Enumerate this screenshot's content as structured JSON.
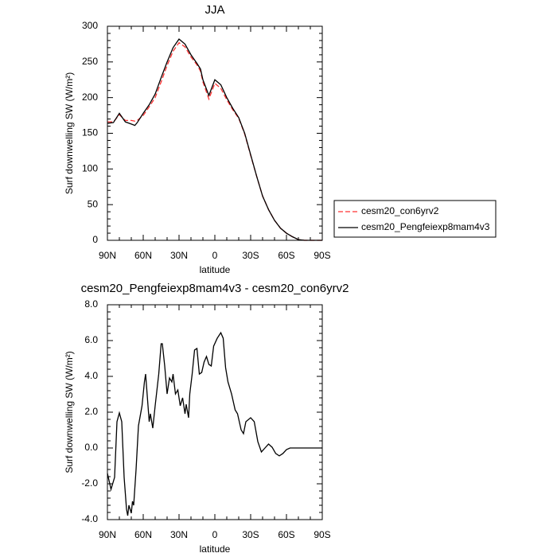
{
  "chart_data": [
    {
      "type": "line",
      "title": "JJA",
      "xlabel": "latitude",
      "ylabel": "Surf downwelling SW (W/m²)",
      "x": [
        90,
        85,
        80,
        75,
        70,
        67,
        65,
        60,
        55,
        50,
        45,
        40,
        35,
        30,
        25,
        20,
        15,
        12,
        10,
        5,
        0,
        -5,
        -10,
        -15,
        -20,
        -25,
        -30,
        -35,
        -40,
        -45,
        -50,
        -55,
        -60,
        -65,
        -70,
        -75,
        -80,
        -85,
        -90
      ],
      "series": [
        {
          "name": "cesm20_con6yrv2",
          "color": "#ff3030",
          "line_style": "dashed",
          "values": [
            166,
            166,
            176,
            168,
            168,
            167,
            168,
            175,
            187,
            200,
            222,
            245,
            265,
            277,
            271,
            257,
            246,
            237,
            222,
            198,
            220,
            213,
            197,
            183,
            171,
            149,
            119,
            90,
            62,
            43,
            28,
            17,
            10,
            5,
            1,
            0,
            0,
            0,
            0
          ]
        },
        {
          "name": "cesm20_Pengfeiexp8mam4v3",
          "color": "#000000",
          "line_style": "solid",
          "values": [
            164,
            165,
            178,
            166,
            163,
            161,
            165,
            178,
            190,
            205,
            228,
            250,
            270,
            282,
            275,
            260,
            248,
            240,
            225,
            203,
            225,
            218,
            200,
            185,
            172,
            150,
            120,
            90,
            62,
            43,
            28,
            17,
            10,
            5,
            1,
            0,
            0,
            0,
            0
          ]
        }
      ],
      "xlim": [
        90,
        -90
      ],
      "xticks": [
        {
          "value": 90,
          "label": "90N"
        },
        {
          "value": 60,
          "label": "60N"
        },
        {
          "value": 30,
          "label": "30N"
        },
        0,
        {
          "value": -30,
          "label": "30S"
        },
        {
          "value": -60,
          "label": "60S"
        },
        {
          "value": -90,
          "label": "90S"
        }
      ],
      "ylim": [
        0,
        300
      ],
      "yticks": [
        0,
        50,
        100,
        150,
        200,
        250,
        300
      ],
      "legend": "right"
    },
    {
      "type": "line",
      "title": "cesm20_Pengfeiexp8mam4v3 - cesm20_con6yrv2",
      "xlabel": "latitude",
      "ylabel": "Surf downwelling SW (W/m²)",
      "x": [
        90,
        87,
        84,
        82,
        80,
        78,
        76,
        74,
        73,
        72,
        70,
        69,
        68,
        66,
        64,
        61,
        59,
        58,
        56,
        55,
        54,
        52,
        50,
        47,
        45,
        44,
        42,
        40,
        38,
        36,
        35,
        33,
        31,
        29,
        27,
        25,
        24,
        22,
        21,
        19,
        17,
        15,
        13,
        11,
        9,
        7,
        5,
        3,
        1,
        -2,
        -5,
        -7,
        -9,
        -11,
        -14,
        -17,
        -19,
        -22,
        -24,
        -26,
        -30,
        -33,
        -36,
        -39,
        -42,
        -45,
        -48,
        -51,
        -54,
        -57,
        -60,
        -63,
        -90
      ],
      "values": [
        -1.42,
        -2.31,
        -1.64,
        1.47,
        1.96,
        1.47,
        -1.64,
        -3.42,
        -3.78,
        -3.2,
        -3.64,
        -2.98,
        -3.2,
        -1.2,
        1.24,
        2.36,
        3.69,
        4.13,
        2.36,
        1.47,
        1.91,
        1.11,
        2.36,
        4.13,
        5.82,
        5.82,
        4.58,
        3.02,
        3.91,
        3.69,
        4.13,
        3.02,
        3.24,
        2.36,
        2.8,
        1.91,
        2.44,
        1.69,
        3.02,
        4.13,
        5.47,
        5.56,
        4.13,
        4.22,
        4.8,
        5.11,
        4.67,
        4.58,
        5.69,
        6.13,
        6.44,
        6.13,
        4.49,
        3.69,
        3.02,
        2.13,
        1.91,
        1.02,
        0.8,
        1.47,
        1.69,
        1.47,
        0.36,
        -0.22,
        0,
        0.22,
        0.04,
        -0.31,
        -0.44,
        -0.31,
        -0.09,
        0,
        0
      ],
      "color": "#000000",
      "xlim": [
        90,
        -90
      ],
      "xticks": [
        {
          "value": 90,
          "label": "90N"
        },
        {
          "value": 60,
          "label": "60N"
        },
        {
          "value": 30,
          "label": "30N"
        },
        0,
        {
          "value": -30,
          "label": "30S"
        },
        {
          "value": -60,
          "label": "60S"
        },
        {
          "value": -90,
          "label": "90S"
        }
      ],
      "ylim": [
        -4,
        8
      ],
      "yticks": [
        {
          "value": -4,
          "label": "-4.0"
        },
        {
          "value": -2,
          "label": "-2.0"
        },
        {
          "value": 0,
          "label": "0.0"
        },
        {
          "value": 2,
          "label": "2.0"
        },
        {
          "value": 4,
          "label": "4.0"
        },
        {
          "value": 6,
          "label": "6.0"
        },
        {
          "value": 8,
          "label": "8.0"
        }
      ]
    }
  ]
}
